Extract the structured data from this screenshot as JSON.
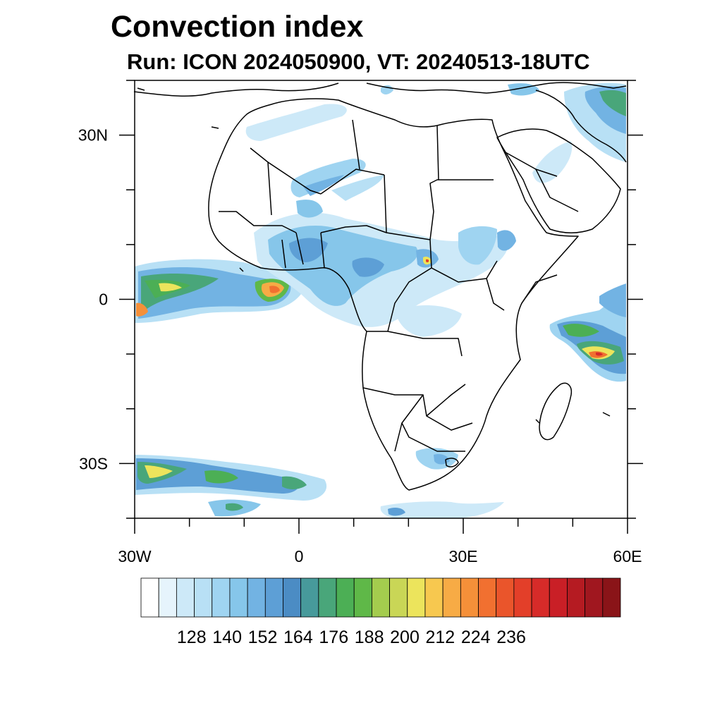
{
  "title": "Convection index",
  "subtitle": "Run: ICON 2024050900,  VT: 20240513-18UTC",
  "map": {
    "lon_range": [
      -30,
      60
    ],
    "lat_range": [
      -40,
      40
    ],
    "lat_ticks": [
      {
        "value": 30,
        "label": "30N"
      },
      {
        "value": 0,
        "label": "0"
      },
      {
        "value": -30,
        "label": "30S"
      }
    ],
    "lon_ticks": [
      {
        "value": -30,
        "label": "30W"
      },
      {
        "value": 0,
        "label": "0"
      },
      {
        "value": 30,
        "label": "30E"
      },
      {
        "value": 60,
        "label": "60E"
      }
    ],
    "minor_step_deg": 10
  },
  "colorbar": {
    "colors": [
      "#ffffff",
      "#e6f4fc",
      "#cde9f8",
      "#b8e0f5",
      "#9fd4f1",
      "#86c6ea",
      "#72b3e3",
      "#5d9fd6",
      "#4b8cc4",
      "#479a9b",
      "#49a67a",
      "#4caf55",
      "#5fb848",
      "#a4cc4e",
      "#c9d656",
      "#ece45c",
      "#f7c84f",
      "#f7ab45",
      "#f59039",
      "#f17030",
      "#ea552b",
      "#e33f29",
      "#d72b29",
      "#c91f26",
      "#b51b22",
      "#a0171f",
      "#8a1418"
    ],
    "labels": [
      "128",
      "140",
      "152",
      "164",
      "176",
      "188",
      "200",
      "212",
      "224",
      "236"
    ],
    "label_positions": [
      2,
      4,
      6,
      8,
      10,
      12,
      14,
      16,
      18,
      20
    ]
  }
}
